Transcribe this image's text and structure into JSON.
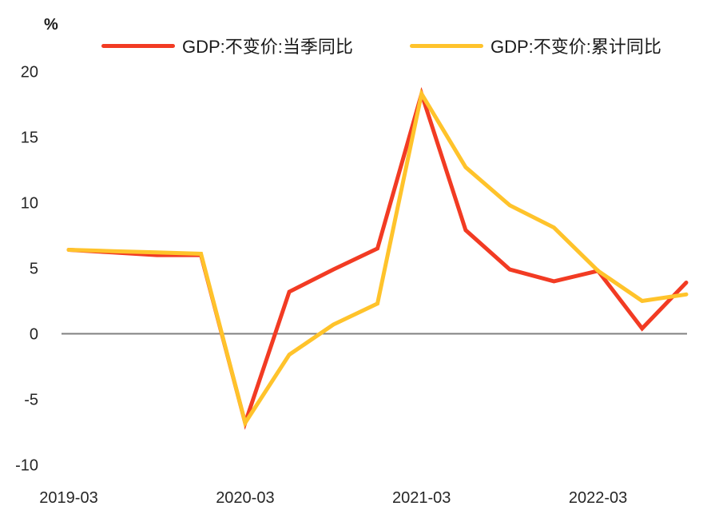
{
  "chart": {
    "unit_label": "%"
  },
  "colors": {
    "zero_line": "#808080",
    "text": "#262626",
    "series_quarterly": "#F23B23",
    "series_cumulative": "#FFC32B"
  },
  "chart_data": {
    "type": "line",
    "title": "",
    "xlabel": "",
    "ylabel": "%",
    "ylim": [
      -10,
      20
    ],
    "yticks": [
      20,
      15,
      10,
      5,
      0,
      -5,
      -10
    ],
    "grid": false,
    "zero_line": true,
    "legend_position": "top",
    "x": [
      "2019-03",
      "2019-06",
      "2019-09",
      "2019-12",
      "2020-03",
      "2020-06",
      "2020-09",
      "2020-12",
      "2021-03",
      "2021-06",
      "2021-09",
      "2021-12",
      "2022-03",
      "2022-06",
      "2022-09"
    ],
    "xtick_labels": [
      "2019-03",
      "2020-03",
      "2021-03",
      "2022-03"
    ],
    "series": [
      {
        "name": "GDP:不变价:当季同比",
        "color": "#F23B23",
        "values": [
          6.4,
          6.2,
          6.0,
          6.0,
          -6.8,
          3.2,
          4.9,
          6.5,
          18.3,
          7.9,
          4.9,
          4.0,
          4.8,
          0.4,
          3.9
        ]
      },
      {
        "name": "GDP:不变价:累计同比",
        "color": "#FFC32B",
        "values": [
          6.4,
          6.3,
          6.2,
          6.1,
          -6.8,
          -1.6,
          0.7,
          2.3,
          18.3,
          12.7,
          9.8,
          8.1,
          4.8,
          2.5,
          3.0
        ]
      }
    ]
  }
}
